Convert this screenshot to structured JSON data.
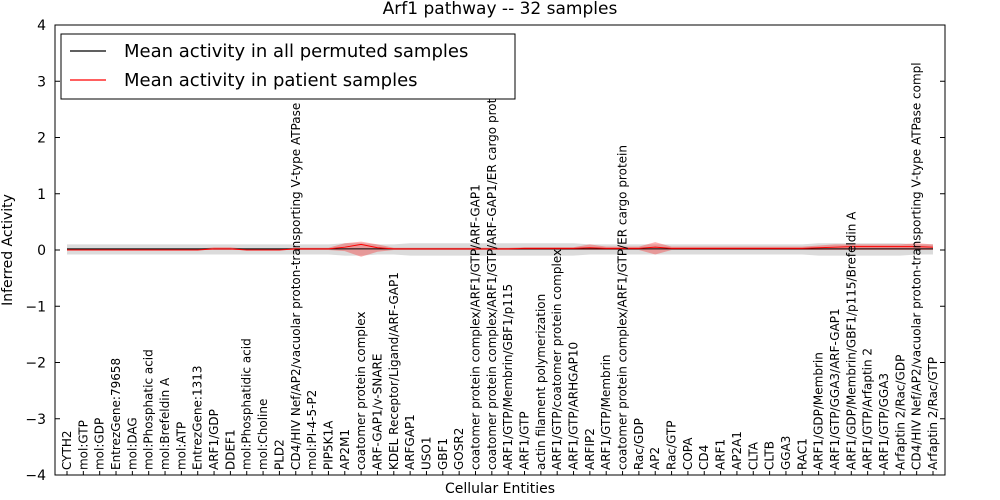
{
  "chart_data": {
    "type": "line",
    "title": "Arf1 pathway -- 32 samples",
    "xlabel": "Cellular Entities",
    "ylabel": "Inferred Activity",
    "ylim": [
      -4,
      4
    ],
    "yticks": [
      "−4",
      "−3",
      "−2",
      "−1",
      "0",
      "1",
      "2",
      "3",
      "4"
    ],
    "legend_position": "top-left",
    "grid": false,
    "categories": [
      "CYTH2",
      "mol:GTP",
      "mol:GDP",
      "EntrezGene:79658",
      "mol:DAG",
      "mol:Phosphatic acid",
      "mol:Brefeldin A",
      "mol:ATP",
      "EntrezGene:1313",
      "ARF1/GDP",
      "DDEF1",
      "mol:Phosphatidic acid",
      "mol:Choline",
      "PLD2",
      "CD4/HIV Nef/AP2/vacuolar proton-transporting V-type ATPase compl",
      "mol:PI-4-5-P2",
      "PIP5K1A",
      "AP2M1",
      "coatomer protein complex",
      "ARF-GAP1/v-SNARE",
      "KDEL Receptor/Ligand/ARF-GAP1",
      "ARFGAP1",
      "USO1",
      "GBF1",
      "GOSR2",
      "coatomer protein complex/ARF1/GTP/ARF-GAP1",
      "coatomer protein complex/ARF1/GTP/ARF-GAP1/ER cargo protein",
      "ARF1/GTP/Membrin/GBF1/p115",
      "ARF1/GTP",
      "actin filament polymerization",
      "ARF1/GTP/coatomer protein complex",
      "ARF1/GTP/ARHGAP10",
      "ARFIP2",
      "ARF1/GTP/Membrin",
      "coatomer protein complex/ARF1/GTP/ER cargo protein",
      "Rac/GDP",
      "AP2",
      "Rac/GTP",
      "COPA",
      "CD4",
      "ARF1",
      "AP2A1",
      "CLTA",
      "CLTB",
      "GGA3",
      "RAC1",
      "ARF1/GDP/Membrin",
      "ARF1/GTP/GGA3/ARF-GAP1",
      "ARF1/GDP/Membrin/GBF1/p115/Brefeldin A",
      "ARF1/GTP/Arfaptin 2",
      "ARF1/GTP/GGA3",
      "Arfaptin 2/Rac/GDP",
      "CD4/HIV Nef/AP2/vacuolar proton-transporting V-type ATPase compl",
      "Arfaptin 2/Rac/GTP"
    ],
    "series": [
      {
        "name": "Mean activity in all permuted samples",
        "color": "#000000",
        "values": [
          0.02,
          0.02,
          0.02,
          0.02,
          0.02,
          0.02,
          0.02,
          0.02,
          0.02,
          0.02,
          0.02,
          0.02,
          0.02,
          0.02,
          0.02,
          0.02,
          0.02,
          0.02,
          0.02,
          0.02,
          0.02,
          0.02,
          0.02,
          0.02,
          0.02,
          0.02,
          0.02,
          0.02,
          0.02,
          0.02,
          0.02,
          0.02,
          0.02,
          0.02,
          0.02,
          0.02,
          0.02,
          0.02,
          0.02,
          0.02,
          0.02,
          0.02,
          0.02,
          0.02,
          0.02,
          0.02,
          0.02,
          0.02,
          0.02,
          0.02,
          0.02,
          0.02,
          0.02,
          0.02
        ],
        "lower": [
          -0.08,
          -0.08,
          -0.08,
          -0.08,
          -0.08,
          -0.08,
          -0.08,
          -0.08,
          -0.08,
          -0.08,
          -0.08,
          -0.08,
          -0.08,
          -0.08,
          -0.08,
          -0.08,
          -0.08,
          -0.1,
          -0.1,
          -0.08,
          -0.08,
          -0.1,
          -0.1,
          -0.1,
          -0.1,
          -0.1,
          -0.1,
          -0.1,
          -0.1,
          -0.1,
          -0.1,
          -0.1,
          -0.08,
          -0.08,
          -0.08,
          -0.08,
          -0.08,
          -0.08,
          -0.08,
          -0.08,
          -0.08,
          -0.08,
          -0.08,
          -0.08,
          -0.08,
          -0.08,
          -0.1,
          -0.1,
          -0.1,
          -0.1,
          -0.1,
          -0.1,
          -0.08,
          -0.08
        ],
        "upper": [
          0.1,
          0.1,
          0.1,
          0.1,
          0.1,
          0.1,
          0.1,
          0.1,
          0.1,
          0.1,
          0.1,
          0.1,
          0.1,
          0.1,
          0.1,
          0.1,
          0.1,
          0.12,
          0.12,
          0.1,
          0.1,
          0.12,
          0.12,
          0.12,
          0.12,
          0.12,
          0.12,
          0.12,
          0.12,
          0.12,
          0.12,
          0.12,
          0.1,
          0.1,
          0.1,
          0.1,
          0.1,
          0.1,
          0.1,
          0.1,
          0.1,
          0.1,
          0.1,
          0.1,
          0.1,
          0.1,
          0.12,
          0.12,
          0.12,
          0.12,
          0.12,
          0.12,
          0.1,
          0.1
        ]
      },
      {
        "name": "Mean activity in patient samples",
        "color": "#ff0000",
        "values": [
          0.0,
          0.0,
          0.0,
          0.0,
          0.0,
          0.0,
          0.0,
          0.0,
          0.0,
          0.02,
          0.02,
          0.0,
          0.0,
          0.0,
          0.02,
          0.02,
          0.02,
          0.05,
          0.1,
          0.04,
          0.02,
          0.02,
          0.02,
          0.02,
          0.02,
          0.02,
          0.02,
          0.02,
          0.03,
          0.03,
          0.03,
          0.03,
          0.04,
          0.03,
          0.03,
          0.03,
          0.05,
          0.03,
          0.03,
          0.03,
          0.03,
          0.03,
          0.03,
          0.03,
          0.03,
          0.03,
          0.04,
          0.05,
          0.06,
          0.06,
          0.06,
          0.06,
          0.06,
          0.05
        ],
        "lower": [
          0.0,
          0.0,
          0.0,
          0.0,
          0.0,
          0.0,
          0.0,
          0.0,
          0.0,
          0.0,
          0.0,
          0.0,
          0.0,
          0.0,
          0.0,
          0.0,
          0.0,
          -0.02,
          -0.12,
          -0.03,
          0.0,
          0.0,
          0.0,
          0.0,
          0.0,
          0.0,
          0.0,
          0.0,
          0.0,
          0.0,
          0.0,
          0.0,
          0.0,
          0.0,
          0.0,
          0.0,
          -0.08,
          0.0,
          0.0,
          0.0,
          0.0,
          0.0,
          0.0,
          0.0,
          0.0,
          0.0,
          0.0,
          0.0,
          0.0,
          0.0,
          0.0,
          0.0,
          0.0,
          0.0
        ],
        "upper": [
          0.02,
          0.02,
          0.02,
          0.02,
          0.02,
          0.02,
          0.02,
          0.02,
          0.02,
          0.05,
          0.05,
          0.02,
          0.02,
          0.02,
          0.04,
          0.04,
          0.04,
          0.12,
          0.15,
          0.1,
          0.04,
          0.04,
          0.04,
          0.04,
          0.04,
          0.04,
          0.04,
          0.04,
          0.05,
          0.05,
          0.05,
          0.05,
          0.1,
          0.06,
          0.06,
          0.06,
          0.14,
          0.06,
          0.06,
          0.06,
          0.06,
          0.06,
          0.06,
          0.06,
          0.06,
          0.06,
          0.08,
          0.1,
          0.1,
          0.1,
          0.1,
          0.1,
          0.12,
          0.1
        ]
      }
    ]
  }
}
